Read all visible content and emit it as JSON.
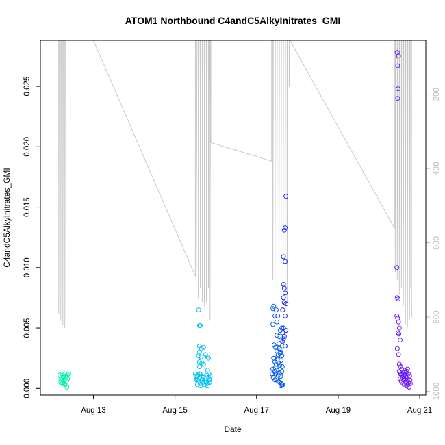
{
  "chart_data": {
    "type": "scatter",
    "title": "ATOM1 Northbound C4andC5AlkyInitrates_GMI",
    "xlabel": "Date",
    "ylabel": "C4andC5AlkyInitrates_GMI",
    "x_unit": "day of August 2016",
    "xlim": [
      11.7,
      21.15
    ],
    "ylim": [
      -0.00055,
      0.0288
    ],
    "x_ticks": [
      13,
      15,
      17,
      19,
      21
    ],
    "x_tick_labels": [
      "Aug 13",
      "Aug 15",
      "Aug 17",
      "Aug 19",
      "Aug 21"
    ],
    "y_ticks": [
      0.0,
      0.005,
      0.01,
      0.015,
      0.02,
      0.025
    ],
    "y_tick_labels": [
      "0.000",
      "0.005",
      "0.010",
      "0.015",
      "0.020",
      "0.025"
    ],
    "y2_ticks": [
      200,
      400,
      600,
      800,
      1000
    ],
    "y2_tick_labels": [
      "200",
      "400",
      "600",
      "800",
      "1000"
    ],
    "y2_lim": [
      1010,
      55
    ],
    "grid": false,
    "legend": "none",
    "colors": {
      "line": "#c8c8c8",
      "right_axis": "#bdbdbd"
    },
    "series": [
      {
        "color": "#00f0b0",
        "points": [
          [
            12.18,
            0.0011
          ],
          [
            12.2,
            0.0008
          ],
          [
            12.22,
            0.0006
          ],
          [
            12.23,
            0.0012
          ],
          [
            12.24,
            0.0004
          ],
          [
            12.25,
            0.0009
          ],
          [
            12.27,
            0.0005
          ],
          [
            12.28,
            0.0007
          ],
          [
            12.3,
            0.0012
          ],
          [
            12.31,
            0.0003
          ],
          [
            12.32,
            0.001
          ],
          [
            12.34,
            0.0006
          ],
          [
            12.35,
            0.0001
          ],
          [
            12.36,
            0.0011
          ],
          [
            12.37,
            0.0008
          ],
          [
            12.38,
            0.0012
          ],
          [
            12.2,
            0.0005
          ],
          [
            12.26,
            0.001
          ],
          [
            12.29,
            0.0004
          ],
          [
            12.33,
            0.0009
          ]
        ]
      },
      {
        "color": "#00c0f0",
        "points": [
          [
            15.58,
            0.0065
          ],
          [
            15.6,
            0.0052
          ],
          [
            15.62,
            0.0052
          ],
          [
            15.6,
            0.0035
          ],
          [
            15.65,
            0.0033
          ],
          [
            15.7,
            0.0034
          ],
          [
            15.6,
            0.003
          ],
          [
            15.75,
            0.0028
          ],
          [
            15.58,
            0.0027
          ],
          [
            15.64,
            0.0026
          ],
          [
            15.8,
            0.0026
          ],
          [
            15.82,
            0.0025
          ],
          [
            15.6,
            0.0022
          ],
          [
            15.66,
            0.0021
          ],
          [
            15.7,
            0.002
          ],
          [
            15.6,
            0.0018
          ],
          [
            15.8,
            0.0015
          ],
          [
            15.5,
            0.0012
          ],
          [
            15.52,
            0.001
          ],
          [
            15.54,
            0.0008
          ],
          [
            15.56,
            0.0011
          ],
          [
            15.58,
            0.0006
          ],
          [
            15.6,
            0.0009
          ],
          [
            15.62,
            0.0004
          ],
          [
            15.64,
            0.0012
          ],
          [
            15.66,
            0.0007
          ],
          [
            15.68,
            0.0005
          ],
          [
            15.7,
            0.001
          ],
          [
            15.72,
            0.0003
          ],
          [
            15.74,
            0.0008
          ],
          [
            15.76,
            0.0006
          ],
          [
            15.78,
            0.0011
          ],
          [
            15.8,
            0.0004
          ],
          [
            15.82,
            0.0009
          ],
          [
            15.84,
            0.0007
          ],
          [
            15.85,
            0.0005
          ],
          [
            15.86,
            0.001
          ],
          [
            15.55,
            0.0003
          ],
          [
            15.63,
            0.0002
          ],
          [
            15.71,
            0.0003
          ],
          [
            15.79,
            0.0002
          ],
          [
            15.53,
            0.0007
          ],
          [
            15.61,
            0.0012
          ],
          [
            15.69,
            0.0009
          ],
          [
            15.77,
            0.0005
          ],
          [
            15.83,
            0.0012
          ]
        ]
      },
      {
        "color": "#0058f0",
        "points": [
          [
            17.4,
            0.0066
          ],
          [
            17.42,
            0.0068
          ],
          [
            17.45,
            0.006
          ],
          [
            17.48,
            0.0065
          ],
          [
            17.5,
            0.0055
          ],
          [
            17.52,
            0.006
          ],
          [
            17.55,
            0.0043
          ],
          [
            17.58,
            0.0048
          ],
          [
            17.6,
            0.004
          ],
          [
            17.62,
            0.005
          ],
          [
            17.64,
            0.0046
          ],
          [
            17.66,
            0.0041
          ],
          [
            17.4,
            0.0053
          ],
          [
            17.43,
            0.0036
          ],
          [
            17.46,
            0.0034
          ],
          [
            17.5,
            0.0031
          ],
          [
            17.53,
            0.0028
          ],
          [
            17.56,
            0.0033
          ],
          [
            17.59,
            0.003
          ],
          [
            17.62,
            0.0027
          ],
          [
            17.42,
            0.0025
          ],
          [
            17.45,
            0.0022
          ],
          [
            17.48,
            0.002
          ],
          [
            17.51,
            0.0024
          ],
          [
            17.54,
            0.0021
          ],
          [
            17.57,
            0.0019
          ],
          [
            17.6,
            0.0023
          ],
          [
            17.63,
            0.0018
          ],
          [
            17.4,
            0.0016
          ],
          [
            17.44,
            0.0014
          ],
          [
            17.47,
            0.0012
          ],
          [
            17.5,
            0.0015
          ],
          [
            17.53,
            0.0011
          ],
          [
            17.56,
            0.0013
          ],
          [
            17.59,
            0.001
          ],
          [
            17.62,
            0.0014
          ],
          [
            17.41,
            0.0009
          ],
          [
            17.45,
            0.0007
          ],
          [
            17.49,
            0.0008
          ],
          [
            17.53,
            0.0006
          ],
          [
            17.57,
            0.0005
          ],
          [
            17.61,
            0.0004
          ],
          [
            17.64,
            0.0003
          ],
          [
            17.38,
            0.0012
          ],
          [
            17.46,
            0.0017
          ],
          [
            17.52,
            0.0026
          ],
          [
            17.58,
            0.0029
          ],
          [
            17.6,
            0.0032
          ],
          [
            17.55,
            0.0037
          ],
          [
            17.5,
            0.0044
          ],
          [
            17.62,
            0.0003
          ],
          [
            17.6,
            0.0002
          ]
        ]
      },
      {
        "color": "#1e28f0",
        "points": [
          [
            17.72,
            0.0159
          ],
          [
            17.7,
            0.0133
          ],
          [
            17.68,
            0.0131
          ],
          [
            17.66,
            0.0109
          ],
          [
            17.7,
            0.0105
          ],
          [
            17.66,
            0.0086
          ],
          [
            17.68,
            0.0083
          ],
          [
            17.7,
            0.0079
          ],
          [
            17.66,
            0.0075
          ],
          [
            17.68,
            0.0071
          ],
          [
            17.72,
            0.007
          ],
          [
            17.64,
            0.0065
          ],
          [
            17.7,
            0.006
          ],
          [
            17.66,
            0.005
          ],
          [
            17.72,
            0.0048
          ],
          [
            17.68,
            0.0043
          ],
          [
            17.64,
            0.0039
          ],
          [
            17.7,
            0.0035
          ]
        ]
      },
      {
        "color": "#6a18f0",
        "points": [
          [
            20.45,
            0.0278
          ],
          [
            20.48,
            0.0275
          ],
          [
            20.46,
            0.0267
          ],
          [
            20.47,
            0.0248
          ],
          [
            20.46,
            0.024
          ],
          [
            20.44,
            0.01
          ],
          [
            20.45,
            0.0075
          ],
          [
            20.47,
            0.0074
          ],
          [
            20.44,
            0.006
          ],
          [
            20.46,
            0.0058
          ],
          [
            20.48,
            0.0055
          ],
          [
            20.5,
            0.005
          ],
          [
            20.47,
            0.0046
          ],
          [
            20.49,
            0.0045
          ],
          [
            20.52,
            0.004
          ],
          [
            20.45,
            0.0033
          ],
          [
            20.48,
            0.0028
          ],
          [
            20.5,
            0.002
          ],
          [
            20.53,
            0.0018
          ],
          [
            20.56,
            0.0016
          ],
          [
            20.5,
            0.0014
          ],
          [
            20.53,
            0.0012
          ],
          [
            20.56,
            0.0011
          ],
          [
            20.6,
            0.001
          ],
          [
            20.63,
            0.0015
          ],
          [
            20.66,
            0.0013
          ],
          [
            20.7,
            0.0016
          ],
          [
            20.58,
            0.0009
          ],
          [
            20.61,
            0.0008
          ],
          [
            20.64,
            0.0007
          ],
          [
            20.67,
            0.0006
          ],
          [
            20.7,
            0.0008
          ],
          [
            20.73,
            0.0005
          ],
          [
            20.76,
            0.0007
          ],
          [
            20.55,
            0.0006
          ],
          [
            20.59,
            0.0004
          ],
          [
            20.62,
            0.0003
          ],
          [
            20.65,
            0.0005
          ],
          [
            20.68,
            0.0002
          ],
          [
            20.71,
            0.0003
          ],
          [
            20.74,
            0.0001
          ],
          [
            20.77,
            0.0004
          ],
          [
            20.52,
            0.0008
          ],
          [
            20.57,
            0.0012
          ],
          [
            20.62,
            0.0011
          ],
          [
            20.66,
            0.0009
          ],
          [
            20.72,
            0.0012
          ],
          [
            20.75,
            0.001
          ],
          [
            20.6,
            0.0013
          ],
          [
            20.69,
            0.0014
          ]
        ]
      }
    ],
    "line_series": {
      "axis": "right",
      "points": [
        [
          12.15,
          55
        ],
        [
          12.15,
          790
        ],
        [
          12.16,
          55
        ],
        [
          12.2,
          55
        ],
        [
          12.2,
          810
        ],
        [
          12.21,
          55
        ],
        [
          12.25,
          55
        ],
        [
          12.25,
          820
        ],
        [
          12.26,
          55
        ],
        [
          12.3,
          55
        ],
        [
          12.3,
          830
        ],
        [
          12.31,
          55
        ],
        [
          12.4,
          55
        ],
        [
          13.0,
          55
        ],
        [
          15.5,
          690
        ],
        [
          15.5,
          55
        ],
        [
          15.52,
          55
        ],
        [
          15.52,
          710
        ],
        [
          15.54,
          55
        ],
        [
          15.57,
          55
        ],
        [
          15.57,
          750
        ],
        [
          15.59,
          55
        ],
        [
          15.62,
          55
        ],
        [
          15.62,
          720
        ],
        [
          15.64,
          55
        ],
        [
          15.67,
          55
        ],
        [
          15.67,
          760
        ],
        [
          15.69,
          55
        ],
        [
          15.72,
          55
        ],
        [
          15.72,
          770
        ],
        [
          15.74,
          55
        ],
        [
          15.77,
          55
        ],
        [
          15.77,
          760
        ],
        [
          15.79,
          55
        ],
        [
          15.82,
          55
        ],
        [
          15.82,
          720
        ],
        [
          15.83,
          340
        ],
        [
          15.85,
          55
        ],
        [
          15.86,
          55
        ],
        [
          15.86,
          810
        ],
        [
          15.87,
          55
        ],
        [
          15.88,
          55
        ],
        [
          15.88,
          330
        ],
        [
          17.37,
          380
        ],
        [
          17.37,
          55
        ],
        [
          17.4,
          55
        ],
        [
          17.4,
          700
        ],
        [
          17.41,
          55
        ],
        [
          17.45,
          55
        ],
        [
          17.45,
          720
        ],
        [
          17.46,
          55
        ],
        [
          17.5,
          55
        ],
        [
          17.5,
          700
        ],
        [
          17.51,
          55
        ],
        [
          17.55,
          55
        ],
        [
          17.55,
          720
        ],
        [
          17.56,
          55
        ],
        [
          17.6,
          55
        ],
        [
          17.6,
          730
        ],
        [
          17.61,
          55
        ],
        [
          17.65,
          55
        ],
        [
          17.65,
          720
        ],
        [
          17.66,
          55
        ],
        [
          17.7,
          55
        ],
        [
          17.7,
          750
        ],
        [
          17.71,
          55
        ],
        [
          17.75,
          55
        ],
        [
          17.75,
          760
        ],
        [
          17.76,
          55
        ],
        [
          17.8,
          55
        ],
        [
          17.8,
          180
        ],
        [
          17.82,
          55
        ],
        [
          20.38,
          560
        ],
        [
          20.38,
          55
        ],
        [
          20.4,
          55
        ],
        [
          20.4,
          680
        ],
        [
          20.41,
          55
        ],
        [
          20.45,
          55
        ],
        [
          20.45,
          700
        ],
        [
          20.46,
          55
        ],
        [
          20.5,
          55
        ],
        [
          20.5,
          740
        ],
        [
          20.51,
          55
        ],
        [
          20.55,
          55
        ],
        [
          20.55,
          720
        ],
        [
          20.56,
          55
        ],
        [
          20.6,
          55
        ],
        [
          20.6,
          770
        ],
        [
          20.61,
          55
        ],
        [
          20.65,
          55
        ],
        [
          20.65,
          820
        ],
        [
          20.66,
          55
        ],
        [
          20.7,
          55
        ],
        [
          20.7,
          830
        ],
        [
          20.71,
          55
        ],
        [
          20.75,
          55
        ],
        [
          20.75,
          810
        ],
        [
          20.76,
          55
        ],
        [
          20.78,
          55
        ],
        [
          20.78,
          720
        ],
        [
          20.79,
          55
        ],
        [
          20.8,
          55
        ],
        [
          20.8,
          780
        ],
        [
          20.81,
          800
        ]
      ]
    }
  }
}
